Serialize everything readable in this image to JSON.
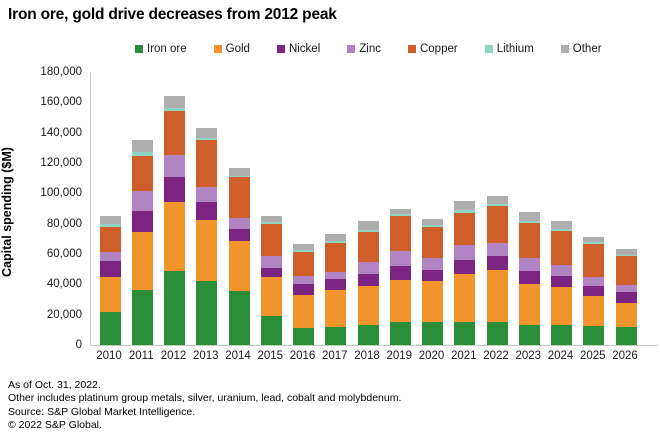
{
  "title": "Iron ore, gold drive decreases from 2012 peak",
  "y_axis": {
    "label": "Capital spending ($M)",
    "tick_labels": [
      "0",
      "20,000",
      "40,000",
      "60,000",
      "80,000",
      "100,000",
      "120,000",
      "140,000",
      "160,000",
      "180,000"
    ]
  },
  "footer": {
    "line1": "As of Oct. 31, 2022.",
    "line2": "Other includes platinum group metals, silver, uranium, lead, cobalt and molybdenum.",
    "line3": "Source: S&P Global Market Intelligence.",
    "line4": "© 2022 S&P Global."
  },
  "chart_data": {
    "type": "bar",
    "stacked": true,
    "title": "Iron ore, gold drive decreases from 2012 peak",
    "ylabel": "Capital spending ($M)",
    "ylim": [
      0,
      180000
    ],
    "ytick_step": 20000,
    "grid": false,
    "legend_position": "top",
    "categories": [
      "2010",
      "2011",
      "2012",
      "2013",
      "2014",
      "2015",
      "2016",
      "2017",
      "2018",
      "2019",
      "2020",
      "2021",
      "2022",
      "2023",
      "2024",
      "2025",
      "2026"
    ],
    "series": [
      {
        "name": "Iron ore",
        "color": "#2a8e39",
        "values": [
          22000,
          36500,
          49000,
          42000,
          35500,
          19000,
          11000,
          12000,
          13000,
          15500,
          15000,
          15000,
          15000,
          13000,
          13500,
          12500,
          12000
        ]
      },
      {
        "name": "Gold",
        "color": "#f0942b",
        "values": [
          23000,
          38000,
          45500,
          40500,
          33000,
          26000,
          22000,
          24500,
          26000,
          27500,
          27000,
          32000,
          34500,
          27000,
          24500,
          19500,
          16000
        ]
      },
      {
        "name": "Nickel",
        "color": "#7b2482",
        "values": [
          10500,
          14000,
          16000,
          11500,
          8000,
          6000,
          7000,
          7000,
          8000,
          9000,
          7500,
          9000,
          9000,
          8500,
          7500,
          7000,
          7000
        ]
      },
      {
        "name": "Zinc",
        "color": "#b283c2",
        "values": [
          6000,
          13000,
          14500,
          10000,
          7500,
          8000,
          5500,
          4500,
          7500,
          10000,
          8000,
          10000,
          9000,
          9000,
          7000,
          6000,
          4500
        ]
      },
      {
        "name": "Copper",
        "color": "#d05e29",
        "values": [
          16500,
          23000,
          29500,
          31000,
          26500,
          21000,
          16000,
          19500,
          20000,
          23000,
          20000,
          21000,
          24000,
          23000,
          23000,
          21500,
          19000
        ]
      },
      {
        "name": "Lithium",
        "color": "#8fd5c6",
        "values": [
          1500,
          2500,
          2000,
          1500,
          1000,
          1000,
          1000,
          1000,
          1500,
          1500,
          1500,
          2000,
          1500,
          1000,
          1000,
          1500,
          1000
        ]
      },
      {
        "name": "Other",
        "color": "#aeaeae",
        "values": [
          5500,
          8500,
          8000,
          6500,
          5500,
          4000,
          4000,
          5000,
          5500,
          3500,
          4000,
          6000,
          5500,
          6000,
          5000,
          3000,
          4000
        ]
      }
    ]
  }
}
